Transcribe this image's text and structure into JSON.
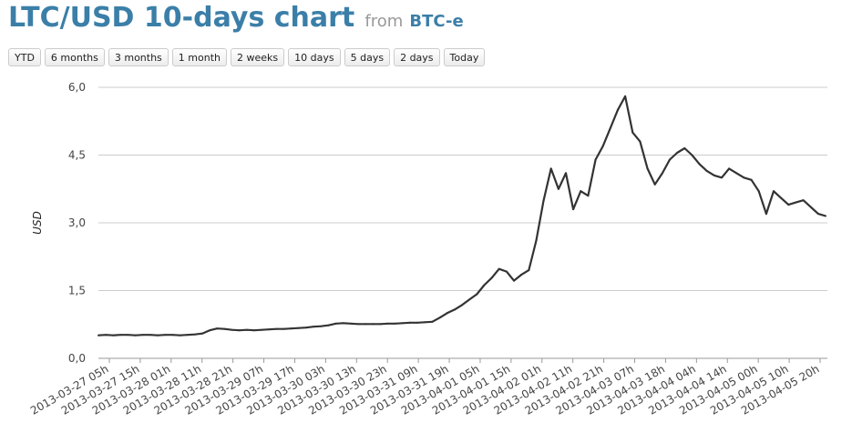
{
  "header": {
    "title": "LTC/USD 10-days chart",
    "from_label": "from",
    "source": "BTC-e"
  },
  "range_buttons": [
    "YTD",
    "6 months",
    "3 months",
    "1 month",
    "2 weeks",
    "10 days",
    "5 days",
    "2 days",
    "Today"
  ],
  "colors": {
    "accent": "#3b7fa8",
    "line": "#333333",
    "grid": "#cccccc"
  },
  "chart_data": {
    "type": "line",
    "title": "LTC/USD 10-days chart",
    "ylabel": "USD",
    "ylim": [
      0,
      6
    ],
    "yticks": [
      "0,0",
      "1,5",
      "3,0",
      "4,5",
      "6,0"
    ],
    "ytick_values": [
      0,
      1.5,
      3.0,
      4.5,
      6.0
    ],
    "grid": true,
    "xtick_labels": [
      "2013-03-27 05h",
      "2013-03-27 15h",
      "2013-03-28 01h",
      "2013-03-28 11h",
      "2013-03-28 21h",
      "2013-03-29 07h",
      "2013-03-29 17h",
      "2013-03-30 03h",
      "2013-03-30 13h",
      "2013-03-30 23h",
      "2013-03-31 09h",
      "2013-03-31 19h",
      "2013-04-01 05h",
      "2013-04-01 15h",
      "2013-04-02 01h",
      "2013-04-02 11h",
      "2013-04-02 21h",
      "2013-04-03 07h",
      "2013-04-03 18h",
      "2013-04-04 04h",
      "2013-04-04 14h",
      "2013-04-05 00h",
      "2013-04-05 10h",
      "2013-04-05 20h"
    ],
    "series": [
      {
        "name": "",
        "values": [
          0.51,
          0.52,
          0.51,
          0.52,
          0.52,
          0.51,
          0.52,
          0.52,
          0.51,
          0.52,
          0.52,
          0.51,
          0.52,
          0.53,
          0.55,
          0.62,
          0.66,
          0.65,
          0.63,
          0.62,
          0.63,
          0.62,
          0.63,
          0.64,
          0.65,
          0.65,
          0.66,
          0.67,
          0.68,
          0.7,
          0.71,
          0.73,
          0.77,
          0.78,
          0.77,
          0.76,
          0.76,
          0.76,
          0.76,
          0.77,
          0.77,
          0.78,
          0.79,
          0.79,
          0.8,
          0.81,
          0.9,
          1.0,
          1.08,
          1.18,
          1.3,
          1.42,
          1.62,
          1.78,
          1.98,
          1.92,
          1.72,
          1.85,
          1.95,
          2.6,
          3.5,
          4.2,
          3.75,
          4.1,
          3.3,
          3.7,
          3.6,
          4.4,
          4.7,
          5.1,
          5.5,
          5.8,
          5.0,
          4.8,
          4.2,
          3.85,
          4.1,
          4.4,
          4.55,
          4.65,
          4.5,
          4.3,
          4.15,
          4.05,
          4.0,
          4.2,
          4.1,
          4.0,
          3.95,
          3.7,
          3.2,
          3.7,
          3.55,
          3.4,
          3.45,
          3.5,
          3.35,
          3.2,
          3.15
        ]
      }
    ]
  }
}
